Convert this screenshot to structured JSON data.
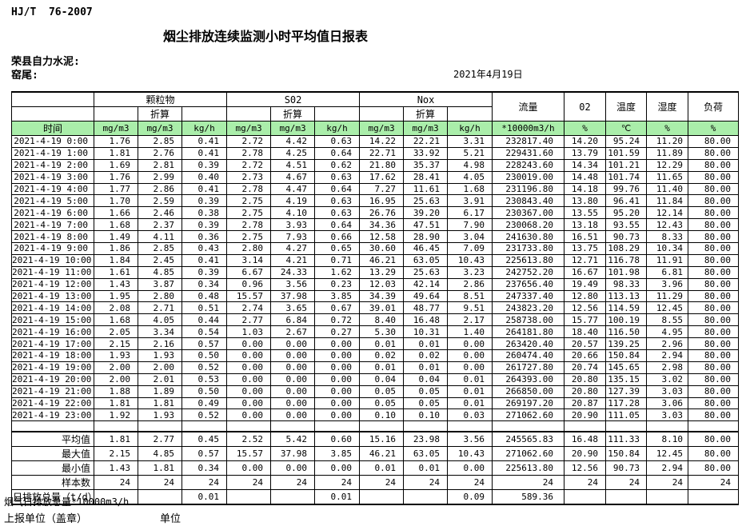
{
  "page": {
    "doc_code": "HJ/T  76-2007",
    "title": "烟尘排放连续监测小时平均值日报表",
    "company": "荣县自力水泥:",
    "location": "窑尾:",
    "date": "2021年4月19日"
  },
  "table": {
    "time_header": "时间",
    "groups": [
      "颗粒物",
      "S02",
      "Nox"
    ],
    "converted_label": "折算",
    "single_columns": [
      "流量",
      "02",
      "温度",
      "湿度",
      "负荷"
    ],
    "units": [
      "mg/m3",
      "mg/m3",
      "kg/h",
      "mg/m3",
      "mg/m3",
      "kg/h",
      "mg/m3",
      "mg/m3",
      "kg/h",
      "*10000m3/h",
      "%",
      "℃",
      "%",
      "%"
    ],
    "rows": [
      {
        "time": "2021-4-19  0:00",
        "values": [
          "1.76",
          "2.85",
          "0.41",
          "2.72",
          "4.42",
          "0.63",
          "14.22",
          "22.21",
          "3.31",
          "232817.40",
          "14.20",
          "95.24",
          "11.20",
          "80.00"
        ]
      },
      {
        "time": "2021-4-19  1:00",
        "values": [
          "1.81",
          "2.76",
          "0.41",
          "2.78",
          "4.25",
          "0.64",
          "22.71",
          "33.92",
          "5.21",
          "229431.60",
          "13.79",
          "101.59",
          "11.89",
          "80.00"
        ]
      },
      {
        "time": "2021-4-19  2:00",
        "values": [
          "1.69",
          "2.81",
          "0.39",
          "2.72",
          "4.51",
          "0.62",
          "21.80",
          "35.37",
          "4.98",
          "228243.60",
          "14.34",
          "101.21",
          "12.29",
          "80.00"
        ]
      },
      {
        "time": "2021-4-19  3:00",
        "values": [
          "1.76",
          "2.99",
          "0.40",
          "2.73",
          "4.67",
          "0.63",
          "17.62",
          "28.41",
          "4.05",
          "230019.00",
          "14.48",
          "101.74",
          "11.65",
          "80.00"
        ]
      },
      {
        "time": "2021-4-19  4:00",
        "values": [
          "1.77",
          "2.86",
          "0.41",
          "2.78",
          "4.47",
          "0.64",
          "7.27",
          "11.61",
          "1.68",
          "231196.80",
          "14.18",
          "99.76",
          "11.40",
          "80.00"
        ]
      },
      {
        "time": "2021-4-19  5:00",
        "values": [
          "1.70",
          "2.59",
          "0.39",
          "2.75",
          "4.19",
          "0.63",
          "16.95",
          "25.63",
          "3.91",
          "230843.40",
          "13.80",
          "96.41",
          "11.84",
          "80.00"
        ]
      },
      {
        "time": "2021-4-19  6:00",
        "values": [
          "1.66",
          "2.46",
          "0.38",
          "2.75",
          "4.10",
          "0.63",
          "26.76",
          "39.20",
          "6.17",
          "230367.00",
          "13.55",
          "95.20",
          "12.14",
          "80.00"
        ]
      },
      {
        "time": "2021-4-19  7:00",
        "values": [
          "1.68",
          "2.37",
          "0.39",
          "2.78",
          "3.93",
          "0.64",
          "34.36",
          "47.51",
          "7.90",
          "230068.20",
          "13.18",
          "93.55",
          "12.43",
          "80.00"
        ]
      },
      {
        "time": "2021-4-19  8:00",
        "values": [
          "1.49",
          "4.11",
          "0.36",
          "2.75",
          "7.93",
          "0.66",
          "12.58",
          "28.90",
          "3.04",
          "241630.80",
          "16.51",
          "90.73",
          "8.33",
          "80.00"
        ]
      },
      {
        "time": "2021-4-19  9:00",
        "values": [
          "1.86",
          "2.85",
          "0.43",
          "2.80",
          "4.27",
          "0.65",
          "30.60",
          "46.45",
          "7.09",
          "231733.80",
          "13.75",
          "108.29",
          "10.34",
          "80.00"
        ]
      },
      {
        "time": "2021-4-19 10:00",
        "values": [
          "1.84",
          "2.45",
          "0.41",
          "3.14",
          "4.21",
          "0.71",
          "46.21",
          "63.05",
          "10.43",
          "225613.80",
          "12.71",
          "116.78",
          "11.91",
          "80.00"
        ]
      },
      {
        "time": "2021-4-19 11:00",
        "values": [
          "1.61",
          "4.85",
          "0.39",
          "6.67",
          "24.33",
          "1.62",
          "13.29",
          "25.63",
          "3.23",
          "242752.20",
          "16.67",
          "101.98",
          "6.81",
          "80.00"
        ]
      },
      {
        "time": "2021-4-19 12:00",
        "values": [
          "1.43",
          "3.87",
          "0.34",
          "0.96",
          "3.56",
          "0.23",
          "12.03",
          "42.14",
          "2.86",
          "237656.40",
          "19.49",
          "98.33",
          "3.96",
          "80.00"
        ]
      },
      {
        "time": "2021-4-19 13:00",
        "values": [
          "1.95",
          "2.80",
          "0.48",
          "15.57",
          "37.98",
          "3.85",
          "34.39",
          "49.64",
          "8.51",
          "247337.40",
          "12.80",
          "113.13",
          "11.29",
          "80.00"
        ]
      },
      {
        "time": "2021-4-19 14:00",
        "values": [
          "2.08",
          "2.71",
          "0.51",
          "2.74",
          "3.65",
          "0.67",
          "39.01",
          "48.77",
          "9.51",
          "243823.20",
          "12.56",
          "114.59",
          "12.45",
          "80.00"
        ]
      },
      {
        "time": "2021-4-19 15:00",
        "values": [
          "1.68",
          "4.05",
          "0.44",
          "2.77",
          "6.84",
          "0.72",
          "8.40",
          "16.48",
          "2.17",
          "258738.00",
          "15.77",
          "100.19",
          "8.55",
          "80.00"
        ]
      },
      {
        "time": "2021-4-19 16:00",
        "values": [
          "2.05",
          "3.34",
          "0.54",
          "1.03",
          "2.67",
          "0.27",
          "5.30",
          "10.31",
          "1.40",
          "264181.80",
          "18.40",
          "116.50",
          "4.95",
          "80.00"
        ]
      },
      {
        "time": "2021-4-19 17:00",
        "values": [
          "2.15",
          "2.16",
          "0.57",
          "0.00",
          "0.00",
          "0.00",
          "0.01",
          "0.01",
          "0.00",
          "263420.40",
          "20.57",
          "139.25",
          "2.96",
          "80.00"
        ]
      },
      {
        "time": "2021-4-19 18:00",
        "values": [
          "1.93",
          "1.93",
          "0.50",
          "0.00",
          "0.00",
          "0.00",
          "0.02",
          "0.02",
          "0.00",
          "260474.40",
          "20.66",
          "150.84",
          "2.94",
          "80.00"
        ]
      },
      {
        "time": "2021-4-19 19:00",
        "values": [
          "2.00",
          "2.00",
          "0.52",
          "0.00",
          "0.00",
          "0.00",
          "0.01",
          "0.01",
          "0.00",
          "261727.80",
          "20.74",
          "145.65",
          "2.98",
          "80.00"
        ]
      },
      {
        "time": "2021-4-19 20:00",
        "values": [
          "2.00",
          "2.01",
          "0.53",
          "0.00",
          "0.00",
          "0.00",
          "0.04",
          "0.04",
          "0.01",
          "264393.00",
          "20.80",
          "135.15",
          "3.02",
          "80.00"
        ]
      },
      {
        "time": "2021-4-19 21:00",
        "values": [
          "1.88",
          "1.89",
          "0.50",
          "0.00",
          "0.00",
          "0.00",
          "0.05",
          "0.05",
          "0.01",
          "266850.00",
          "20.80",
          "127.39",
          "3.03",
          "80.00"
        ]
      },
      {
        "time": "2021-4-19 22:00",
        "values": [
          "1.81",
          "1.81",
          "0.49",
          "0.00",
          "0.00",
          "0.00",
          "0.05",
          "0.05",
          "0.01",
          "269197.20",
          "20.87",
          "117.28",
          "3.06",
          "80.00"
        ]
      },
      {
        "time": "2021-4-19 23:00",
        "values": [
          "1.92",
          "1.93",
          "0.52",
          "0.00",
          "0.00",
          "0.00",
          "0.10",
          "0.10",
          "0.03",
          "271062.60",
          "20.90",
          "111.05",
          "3.03",
          "80.00"
        ]
      }
    ],
    "summary_rows": [
      {
        "label": "平均值",
        "values": [
          "1.81",
          "2.77",
          "0.45",
          "2.52",
          "5.42",
          "0.60",
          "15.16",
          "23.98",
          "3.56",
          "245565.83",
          "16.48",
          "111.33",
          "8.10",
          "80.00"
        ]
      },
      {
        "label": "最大值",
        "values": [
          "2.15",
          "4.85",
          "0.57",
          "15.57",
          "37.98",
          "3.85",
          "46.21",
          "63.05",
          "10.43",
          "271062.60",
          "20.90",
          "150.84",
          "12.45",
          "80.00"
        ]
      },
      {
        "label": "最小值",
        "values": [
          "1.43",
          "1.81",
          "0.34",
          "0.00",
          "0.00",
          "0.00",
          "0.01",
          "0.01",
          "0.00",
          "225613.80",
          "12.56",
          "90.73",
          "2.94",
          "80.00"
        ]
      },
      {
        "label": "样本数",
        "values": [
          "24",
          "24",
          "24",
          "24",
          "24",
          "24",
          "24",
          "24",
          "24",
          "24",
          "24",
          "24",
          "24",
          "24"
        ]
      }
    ],
    "total_row": {
      "label": "日排放总量（t/d）",
      "values": [
        "",
        "",
        "0.01",
        "",
        "",
        "0.01",
        "",
        "",
        "0.09",
        "589.36",
        "",
        "",
        "",
        ""
      ]
    }
  },
  "footer": {
    "note": "烟气日排放总量*10000m3/h",
    "report_unit": "上报单位（盖章）",
    "unit": "单位"
  },
  "colors": {
    "header_green": "#AAEEAA"
  }
}
